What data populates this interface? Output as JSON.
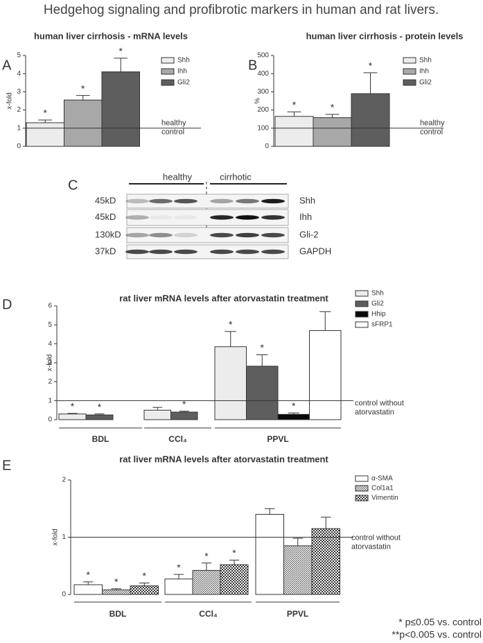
{
  "title": "Hedgehog signaling and profibrotic markers in human and rat livers.",
  "panels": [
    "A",
    "B",
    "C",
    "D",
    "E"
  ],
  "chart_data": [
    {
      "type": "bar",
      "title": "human liver cirrhosis -  mRNA levels",
      "y_label": "x-fold",
      "categories": [
        null
      ],
      "ylim": [
        0,
        5
      ],
      "yticks": [
        0,
        1,
        2,
        3,
        4,
        5
      ],
      "reference_line": {
        "value": 1,
        "label": [
          "healthy",
          "control"
        ]
      },
      "series": [
        {
          "name": "Shh",
          "color": "#ececec",
          "values": [
            1.3
          ],
          "errors": [
            0.15
          ],
          "markers": [
            "*"
          ]
        },
        {
          "name": "Ihh",
          "color": "#a8a8a8",
          "values": [
            2.55
          ],
          "errors": [
            0.25
          ],
          "markers": [
            "*"
          ]
        },
        {
          "name": "Gli2",
          "color": "#5e5e5e",
          "values": [
            4.1
          ],
          "errors": [
            0.75
          ],
          "markers": [
            "*"
          ]
        }
      ]
    },
    {
      "type": "bar",
      "title": "human liver cirrhosis -  protein levels",
      "y_label": "%",
      "categories": [
        null
      ],
      "ylim": [
        0,
        500
      ],
      "yticks": [
        0,
        100,
        200,
        300,
        400,
        500
      ],
      "reference_line": {
        "value": 100,
        "label": [
          "healthy",
          "control"
        ]
      },
      "series": [
        {
          "name": "Shh",
          "color": "#ececec",
          "values": [
            165
          ],
          "errors": [
            25
          ],
          "markers": [
            "*"
          ]
        },
        {
          "name": "Ihh",
          "color": "#a8a8a8",
          "values": [
            158
          ],
          "errors": [
            18
          ],
          "markers": [
            "*"
          ]
        },
        {
          "name": "Gli2",
          "color": "#5e5e5e",
          "values": [
            290
          ],
          "errors": [
            115
          ],
          "markers": [
            "*"
          ]
        }
      ]
    },
    {
      "type": "bar",
      "title": "rat liver mRNA levels after atorvastatin treatment",
      "y_label": "x-fold",
      "categories": [
        "BDL",
        "CCl₄",
        "PPVL"
      ],
      "ylim": [
        0,
        6
      ],
      "yticks": [
        0,
        1,
        2,
        3,
        4,
        5,
        6
      ],
      "reference_line": {
        "value": 1,
        "label": [
          "control without",
          "atorvastatin"
        ]
      },
      "series": [
        {
          "name": "Shh",
          "color": "#ececec",
          "values": [
            0.3,
            0.5,
            3.85
          ],
          "errors": [
            0.03,
            0.15,
            0.8
          ],
          "markers": [
            "*",
            null,
            "*"
          ]
        },
        {
          "name": "Gli2",
          "color": "#5e5e5e",
          "values": [
            0.25,
            0.4,
            2.82
          ],
          "errors": [
            0.05,
            0.05,
            0.6
          ],
          "markers": [
            "*",
            "*",
            "*"
          ]
        },
        {
          "name": "Hhip",
          "color": "#0a0a0a",
          "values": [
            null,
            null,
            0.28
          ],
          "errors": [
            null,
            null,
            0.07
          ],
          "markers": [
            null,
            null,
            "*"
          ]
        },
        {
          "name": "sFRP1",
          "color": "#ffffff",
          "values": [
            null,
            null,
            4.7
          ],
          "errors": [
            null,
            null,
            1.0
          ],
          "markers": [
            null,
            null,
            null
          ]
        }
      ]
    },
    {
      "type": "bar",
      "title": "rat liver mRNA levels after atorvastatin treatment",
      "y_label": "x-fold",
      "categories": [
        "BDL",
        "CCl₄",
        "PPVL"
      ],
      "ylim": [
        0,
        2
      ],
      "yticks": [
        0,
        1,
        2
      ],
      "reference_line": {
        "value": 1,
        "label": [
          "control without",
          "atorvastatin"
        ]
      },
      "series": [
        {
          "name": "α-SMA",
          "color": "#ffffff",
          "values": [
            0.17,
            0.27,
            1.4
          ],
          "errors": [
            0.05,
            0.08,
            0.1
          ],
          "markers": [
            "*",
            "*",
            null
          ]
        },
        {
          "name": "Col1a1",
          "color": "#ffffff",
          "pattern": "hatch",
          "values": [
            0.08,
            0.42,
            0.85
          ],
          "errors": [
            0.02,
            0.13,
            0.13
          ],
          "markers": [
            "*",
            "*",
            null
          ]
        },
        {
          "name": "Vimentin",
          "color": "#ffffff",
          "pattern": "check",
          "values": [
            0.15,
            0.52,
            1.15
          ],
          "errors": [
            0.05,
            0.08,
            0.2
          ],
          "markers": [
            "*",
            "*",
            null
          ]
        }
      ]
    }
  ],
  "blot": {
    "groups": [
      "healthy",
      "cirrhotic"
    ],
    "rows": [
      {
        "size": "45kD",
        "protein": "Shh"
      },
      {
        "size": "45kD",
        "protein": "Ihh"
      },
      {
        "size": "130kD",
        "protein": "Gli-2"
      },
      {
        "size": "37kD",
        "protein": "GAPDH"
      }
    ]
  },
  "footnote": [
    "* p≤0.05 vs. control",
    "**p<0.005 vs. control"
  ]
}
